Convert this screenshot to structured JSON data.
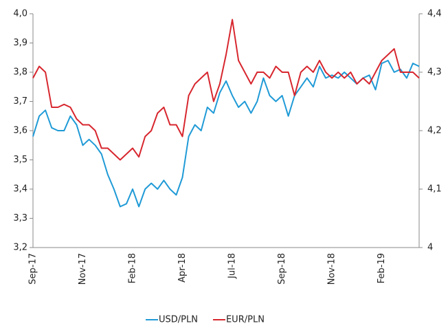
{
  "chart_data": {
    "type": "line",
    "categories": [
      "Sep-17",
      null,
      null,
      null,
      null,
      null,
      null,
      null,
      "Nov-17",
      null,
      null,
      null,
      null,
      null,
      null,
      null,
      "Feb-18",
      null,
      null,
      null,
      null,
      null,
      null,
      null,
      "Apr-18",
      null,
      null,
      null,
      null,
      null,
      null,
      null,
      "Jul-18",
      null,
      null,
      null,
      null,
      null,
      null,
      null,
      "Sep-18",
      null,
      null,
      null,
      null,
      null,
      null,
      null,
      "Nov-18",
      null,
      null,
      null,
      null,
      null,
      null,
      null,
      "Feb-19",
      null,
      null,
      null,
      null,
      null,
      null
    ],
    "series": [
      {
        "name": "USD/PLN",
        "color": "#1f9ad6",
        "axis": "y",
        "values": [
          3.58,
          3.65,
          3.67,
          3.61,
          3.6,
          3.6,
          3.65,
          3.62,
          3.55,
          3.57,
          3.55,
          3.52,
          3.45,
          3.4,
          3.34,
          3.35,
          3.4,
          3.34,
          3.4,
          3.42,
          3.4,
          3.43,
          3.4,
          3.38,
          3.44,
          3.58,
          3.62,
          3.6,
          3.68,
          3.66,
          3.73,
          3.77,
          3.72,
          3.68,
          3.7,
          3.66,
          3.7,
          3.78,
          3.72,
          3.7,
          3.72,
          3.65,
          3.72,
          3.75,
          3.78,
          3.75,
          3.82,
          3.78,
          3.79,
          3.78,
          3.8,
          3.78,
          3.76,
          3.78,
          3.79,
          3.74,
          3.83,
          3.84,
          3.8,
          3.81,
          3.78,
          3.83,
          3.82
        ]
      },
      {
        "name": "EUR/PLN",
        "color": "#d7262e",
        "axis": "y2",
        "values": [
          4.29,
          4.31,
          4.3,
          4.24,
          4.24,
          4.245,
          4.24,
          4.22,
          4.21,
          4.21,
          4.2,
          4.17,
          4.17,
          4.16,
          4.15,
          4.16,
          4.17,
          4.155,
          4.19,
          4.2,
          4.23,
          4.24,
          4.21,
          4.21,
          4.19,
          4.26,
          4.28,
          4.29,
          4.3,
          4.25,
          4.28,
          4.33,
          4.39,
          4.32,
          4.3,
          4.28,
          4.3,
          4.3,
          4.29,
          4.31,
          4.3,
          4.3,
          4.26,
          4.3,
          4.31,
          4.3,
          4.32,
          4.3,
          4.29,
          4.3,
          4.29,
          4.3,
          4.28,
          4.29,
          4.28,
          4.3,
          4.32,
          4.33,
          4.34,
          4.3,
          4.3,
          4.3,
          4.29
        ]
      }
    ],
    "ylim": [
      3.2,
      4.0
    ],
    "yticks": [
      {
        "value": 3.2,
        "label": "3,2"
      },
      {
        "value": 3.3,
        "label": "3,3"
      },
      {
        "value": 3.4,
        "label": "3,4"
      },
      {
        "value": 3.5,
        "label": "3,5"
      },
      {
        "value": 3.6,
        "label": "3,6"
      },
      {
        "value": 3.7,
        "label": "3,7"
      },
      {
        "value": 3.8,
        "label": "3,8"
      },
      {
        "value": 3.9,
        "label": "3,9"
      },
      {
        "value": 4.0,
        "label": "4,0"
      }
    ],
    "y2lim": [
      4,
      4.4
    ],
    "y2ticks": [
      4,
      {
        "value": 4.1,
        "label": "4,1"
      },
      {
        "value": 4.2,
        "label": "4,2"
      },
      {
        "value": 4.3,
        "label": "4,3"
      },
      {
        "value": 4.4,
        "label": "4,4"
      }
    ],
    "grid": false,
    "legend": "bottom"
  }
}
